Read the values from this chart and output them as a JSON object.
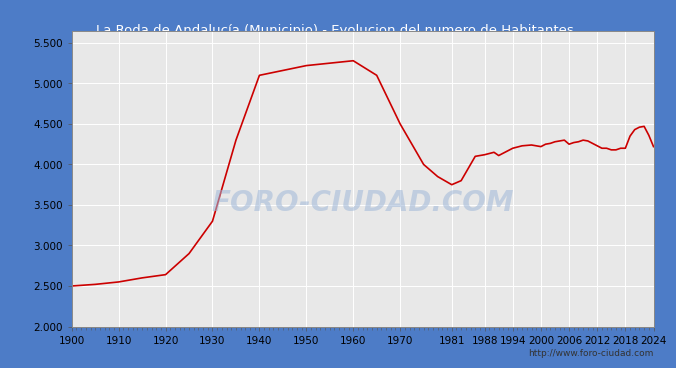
{
  "title": "La Roda de Andalucía (Municipio) - Evolucion del numero de Habitantes",
  "title_color": "#ffffff",
  "title_bg_color": "#4d7cc7",
  "plot_bg_color": "#e8e8e8",
  "outer_bg_color": "#4d7cc7",
  "line_color": "#cc0000",
  "line_width": 1.2,
  "grid_color": "#ffffff",
  "watermark_text": "FORO-CIUDAD.COM",
  "url_text": "http://www.foro-ciudad.com",
  "ylim": [
    2000,
    5650
  ],
  "yticks": [
    2000,
    2500,
    3000,
    3500,
    4000,
    4500,
    5000,
    5500
  ],
  "ytick_labels": [
    "2.000",
    "2.500",
    "3.000",
    "3.500",
    "4.000",
    "4.500",
    "5.000",
    "5.500"
  ],
  "xtick_labels": [
    "1900",
    "1910",
    "1920",
    "1930",
    "1940",
    "1950",
    "1960",
    "1970",
    "1981",
    "1988",
    "1994",
    "2000",
    "2006",
    "2012",
    "2018",
    "2024"
  ],
  "years": [
    1900,
    1905,
    1910,
    1915,
    1920,
    1925,
    1930,
    1935,
    1940,
    1945,
    1950,
    1955,
    1960,
    1965,
    1970,
    1975,
    1978,
    1981,
    1983,
    1986,
    1988,
    1990,
    1991,
    1993,
    1994,
    1996,
    1998,
    2000,
    2001,
    2002,
    2003,
    2004,
    2005,
    2006,
    2007,
    2008,
    2009,
    2010,
    2011,
    2012,
    2013,
    2014,
    2015,
    2016,
    2017,
    2018,
    2019,
    2020,
    2021,
    2022,
    2023,
    2024
  ],
  "population": [
    2500,
    2520,
    2550,
    2600,
    2640,
    2900,
    3300,
    4300,
    5100,
    5160,
    5220,
    5250,
    5280,
    5100,
    4500,
    4000,
    3850,
    3750,
    3800,
    4100,
    4120,
    4150,
    4110,
    4170,
    4200,
    4230,
    4240,
    4220,
    4250,
    4260,
    4280,
    4290,
    4300,
    4250,
    4270,
    4280,
    4300,
    4290,
    4260,
    4230,
    4200,
    4200,
    4180,
    4180,
    4200,
    4200,
    4350,
    4430,
    4460,
    4470,
    4360,
    4220
  ]
}
